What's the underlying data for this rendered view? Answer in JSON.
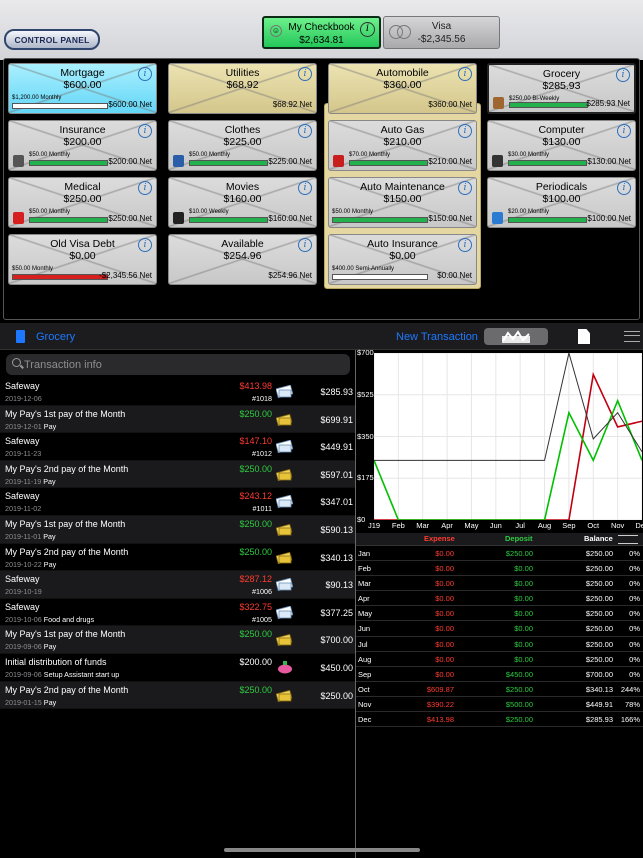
{
  "header": {
    "control_panel_label": "CONTROL PANEL",
    "accounts": [
      {
        "name": "My Checkbook",
        "balance": "$2,634.81",
        "active": true
      },
      {
        "name": "Visa",
        "balance": "-$2,345.56",
        "active": false
      }
    ]
  },
  "envelopes": [
    {
      "name": "Mortgage",
      "amount": "$600.00",
      "budget": "$1,200.00 Monthly",
      "net": "$600.00 Net",
      "style": "cyan",
      "fill_color": "#ffffff",
      "fill": 0.0,
      "icon": ""
    },
    {
      "name": "Utilities",
      "amount": "$68.92",
      "budget": "",
      "net": "$68.92 Net",
      "style": "cream",
      "fill_color": "",
      "fill": 0,
      "icon": ""
    },
    {
      "name": "Automobile",
      "amount": "$360.00",
      "budget": "",
      "net": "$360.00 Net",
      "style": "cream",
      "fill_color": "",
      "fill": 0,
      "icon": ""
    },
    {
      "name": "Grocery",
      "amount": "$285.93",
      "budget": "$250.00 Bi-Weekly",
      "net": "$285.93 Net",
      "style": "gray-selected",
      "fill_color": "#22b14c",
      "fill": 1.0,
      "icon": "grocery-bag-icon"
    },
    {
      "name": "Insurance",
      "amount": "$200.00",
      "budget": "$50.00 Monthly",
      "net": "$200.00 Net",
      "style": "gray",
      "fill_color": "#22b14c",
      "fill": 1.0,
      "icon": "umbrella-shield-icon"
    },
    {
      "name": "Clothes",
      "amount": "$225.00",
      "budget": "$50.00 Monthly",
      "net": "$225.00 Net",
      "style": "gray",
      "fill_color": "#22b14c",
      "fill": 1.0,
      "icon": "jeans-icon"
    },
    {
      "name": "Auto Gas",
      "amount": "$210.00",
      "budget": "$70.00 Monthly",
      "net": "$210.00 Net",
      "style": "gray",
      "fill_color": "#22b14c",
      "fill": 1.0,
      "icon": "gas-pump-icon"
    },
    {
      "name": "Computer",
      "amount": "$130.00",
      "budget": "$30.00 Monthly",
      "net": "$130.00 Net",
      "style": "gray",
      "fill_color": "#22b14c",
      "fill": 1.0,
      "icon": "laptop-icon"
    },
    {
      "name": "Medical",
      "amount": "$250.00",
      "budget": "$50.00 Monthly",
      "net": "$250.00 Net",
      "style": "gray",
      "fill_color": "#22b14c",
      "fill": 1.0,
      "icon": "medical-cross-icon"
    },
    {
      "name": "Movies",
      "amount": "$160.00",
      "budget": "$10.00 Weekly",
      "net": "$160.00 Net",
      "style": "gray",
      "fill_color": "#22b14c",
      "fill": 1.0,
      "icon": "film-strip-icon"
    },
    {
      "name": "Auto Maintenance",
      "amount": "$150.00",
      "budget": "$50.00 Monthly",
      "net": "$150.00 Net",
      "style": "gray",
      "fill_color": "#22b14c",
      "fill": 1.0,
      "icon": ""
    },
    {
      "name": "Periodicals",
      "amount": "$100.00",
      "budget": "$20.00 Monthly",
      "net": "$100.00 Net",
      "style": "gray",
      "fill_color": "#22b14c",
      "fill": 1.0,
      "icon": "magazine-icon"
    },
    {
      "name": "Old Visa Debt",
      "amount": "$0.00",
      "budget": "$50.00 Monthly",
      "net": "-$2,345.56 Net",
      "style": "gray",
      "fill_color": "#d61f1f",
      "fill": 1.0,
      "icon": ""
    },
    {
      "name": "Available",
      "amount": "$254.96",
      "budget": "",
      "net": "$254.96 Net",
      "style": "gray",
      "fill_color": "",
      "fill": 0,
      "icon": ""
    },
    {
      "name": "Auto Insurance",
      "amount": "$0.00",
      "budget": "$400.00 Semi-Annually",
      "net": "$0.00 Net",
      "style": "gray",
      "fill_color": "#ffffff",
      "fill": 0.0,
      "icon": ""
    }
  ],
  "subbar": {
    "envelope_name": "Grocery",
    "new_transaction_label": "New Transaction"
  },
  "search": {
    "placeholder": "Transaction info"
  },
  "transactions": [
    {
      "payee": "Safeway",
      "date": "2019-12-06",
      "memo": "",
      "amount": "$413.98",
      "type": "expense",
      "check": "#1018",
      "balance": "$285.93"
    },
    {
      "payee": "My Pay's 1st pay of the Month",
      "date": "2019-12-01",
      "memo": "Pay",
      "amount": "$250.00",
      "type": "deposit",
      "check": "",
      "balance": "$699.91"
    },
    {
      "payee": "Safeway",
      "date": "2019-11-23",
      "memo": "",
      "amount": "$147.10",
      "type": "expense",
      "check": "#1012",
      "balance": "$449.91"
    },
    {
      "payee": "My Pay's 2nd pay of the Month",
      "date": "2019-11-19",
      "memo": "Pay",
      "amount": "$250.00",
      "type": "deposit",
      "check": "",
      "balance": "$597.01"
    },
    {
      "payee": "Safeway",
      "date": "2019-11-02",
      "memo": "",
      "amount": "$243.12",
      "type": "expense",
      "check": "#1011",
      "balance": "$347.01"
    },
    {
      "payee": "My Pay's 1st pay of the Month",
      "date": "2019-11-01",
      "memo": "Pay",
      "amount": "$250.00",
      "type": "deposit",
      "check": "",
      "balance": "$590.13"
    },
    {
      "payee": "My Pay's 2nd pay of the Month",
      "date": "2019-10-22",
      "memo": "Pay",
      "amount": "$250.00",
      "type": "deposit",
      "check": "",
      "balance": "$340.13"
    },
    {
      "payee": "Safeway",
      "date": "2019-10-19",
      "memo": "",
      "amount": "$287.12",
      "type": "expense",
      "check": "#1006",
      "balance": "$90.13"
    },
    {
      "payee": "Safeway",
      "date": "2019-10-06",
      "memo": "Food and drugs",
      "amount": "$322.75",
      "type": "expense",
      "check": "#1005",
      "balance": "$377.25"
    },
    {
      "payee": "My Pay's 1st pay of the Month",
      "date": "2019-09-06",
      "memo": "Pay",
      "amount": "$250.00",
      "type": "deposit",
      "check": "",
      "balance": "$700.00"
    },
    {
      "payee": "Initial distribution of funds",
      "date": "2019-09-06",
      "memo": "Setup Assistant start up",
      "amount": "$200.00",
      "type": "initial",
      "check": "",
      "balance": "$450.00"
    },
    {
      "payee": "My Pay's 2nd pay of the Month",
      "date": "2019-01-15",
      "memo": "Pay",
      "amount": "$250.00",
      "type": "deposit",
      "check": "",
      "balance": "$250.00"
    }
  ],
  "colors": {
    "expense": "#ff3b30",
    "deposit": "#2ecc40",
    "link": "#1e78ff",
    "initial": "#ffffff"
  },
  "chart_data": {
    "type": "line",
    "categories": [
      "J19",
      "Feb",
      "Mar",
      "Apr",
      "May",
      "Jun",
      "Jul",
      "Aug",
      "Sep",
      "Oct",
      "Nov",
      "Dec"
    ],
    "ylim": [
      0,
      700
    ],
    "yticks": [
      "$0",
      "$175",
      "$350",
      "$525",
      "$700"
    ],
    "series": [
      {
        "key": "expense",
        "color": "#c0000f",
        "values": [
          0,
          0,
          0,
          0,
          0,
          0,
          0,
          0,
          0,
          609.87,
          390.22,
          413.98
        ]
      },
      {
        "key": "deposit",
        "color": "#00c000",
        "values": [
          250,
          0,
          0,
          0,
          0,
          0,
          0,
          0,
          450,
          250,
          500,
          250
        ]
      },
      {
        "key": "balance",
        "color": "#333333",
        "values": [
          250,
          250,
          250,
          250,
          250,
          250,
          250,
          250,
          700,
          340.13,
          449.91,
          285.93
        ]
      }
    ]
  },
  "stats": {
    "headers": {
      "expense": "Expense",
      "deposit": "Deposit",
      "balance": "Balance"
    },
    "rows": [
      {
        "month": "Jan",
        "expense": "$0.00",
        "deposit": "$250.00",
        "balance": "$250.00",
        "pct": "0%"
      },
      {
        "month": "Feb",
        "expense": "$0.00",
        "deposit": "$0.00",
        "balance": "$250.00",
        "pct": "0%"
      },
      {
        "month": "Mar",
        "expense": "$0.00",
        "deposit": "$0.00",
        "balance": "$250.00",
        "pct": "0%"
      },
      {
        "month": "Apr",
        "expense": "$0.00",
        "deposit": "$0.00",
        "balance": "$250.00",
        "pct": "0%"
      },
      {
        "month": "May",
        "expense": "$0.00",
        "deposit": "$0.00",
        "balance": "$250.00",
        "pct": "0%"
      },
      {
        "month": "Jun",
        "expense": "$0.00",
        "deposit": "$0.00",
        "balance": "$250.00",
        "pct": "0%"
      },
      {
        "month": "Jul",
        "expense": "$0.00",
        "deposit": "$0.00",
        "balance": "$250.00",
        "pct": "0%"
      },
      {
        "month": "Aug",
        "expense": "$0.00",
        "deposit": "$0.00",
        "balance": "$250.00",
        "pct": "0%"
      },
      {
        "month": "Sep",
        "expense": "$0.00",
        "deposit": "$450.00",
        "balance": "$700.00",
        "pct": "0%"
      },
      {
        "month": "Oct",
        "expense": "$609.87",
        "deposit": "$250.00",
        "balance": "$340.13",
        "pct": "244%"
      },
      {
        "month": "Nov",
        "expense": "$390.22",
        "deposit": "$500.00",
        "balance": "$449.91",
        "pct": "78%"
      },
      {
        "month": "Dec",
        "expense": "$413.98",
        "deposit": "$250.00",
        "balance": "$285.93",
        "pct": "166%"
      }
    ]
  }
}
